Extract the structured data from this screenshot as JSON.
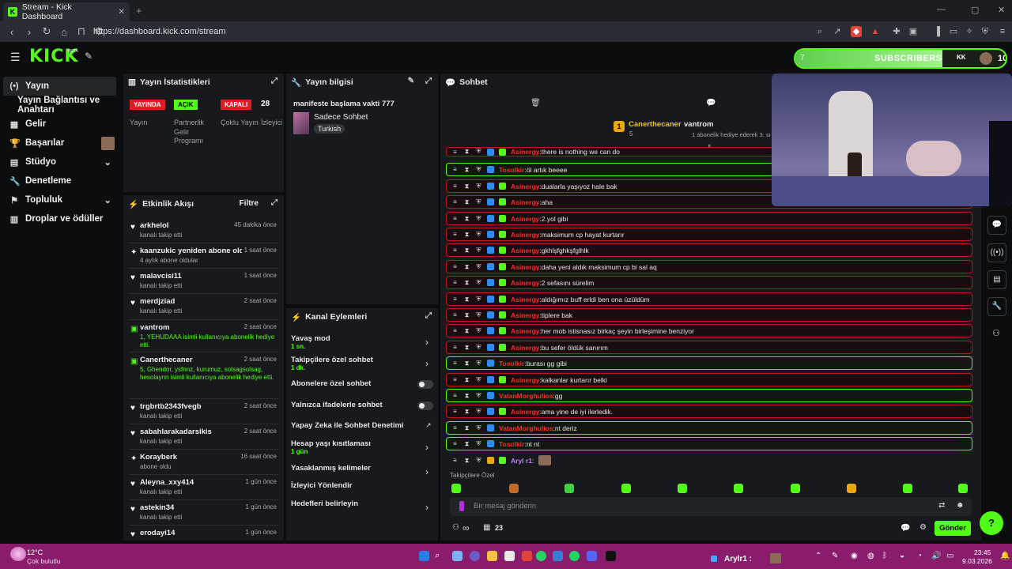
{
  "browser": {
    "tab_title": "Stream - Kick Dashboard",
    "tab_close": "✕",
    "new_tab": "+",
    "url": "https://dashboard.kick.com/stream",
    "window_controls": [
      "—",
      "▢",
      "✕"
    ]
  },
  "header": {
    "logo": "KICK",
    "logo_beta": "BETA",
    "subs_current": "7",
    "subs_label": "SUBSCRIBERS",
    "subs_count": "10",
    "subs_progress": 0.7
  },
  "sidebar": {
    "items": [
      {
        "label": "Yayın",
        "icon": "(•)"
      },
      {
        "label": "Yayın Bağlantısı ve Anahtarı",
        "icon": ""
      },
      {
        "label": "Gelir",
        "icon": "▦"
      },
      {
        "label": "Başarılar",
        "icon": "🏆"
      },
      {
        "label": "Stüdyo",
        "icon": "▤"
      },
      {
        "label": "Denetleme",
        "icon": "🔧"
      },
      {
        "label": "Topluluk",
        "icon": "⚑"
      },
      {
        "label": "Droplar ve ödüller",
        "icon": "▥"
      }
    ]
  },
  "stats": {
    "title": "Yayın İstatistikleri",
    "items": [
      {
        "badge": "YAYINDA",
        "label": "Yayın",
        "color": "#e11b22"
      },
      {
        "badge": "AÇIK",
        "label": "Partnerlik Gelir Programı",
        "color": "#53fc18"
      },
      {
        "badge": "KAPALI",
        "label": "Çoklu Yayın",
        "color": "#e11b22"
      },
      {
        "badge": "28",
        "label": "İzleyici",
        "color": ""
      }
    ]
  },
  "info": {
    "title": "Yayın bilgisi",
    "stream_title": "manifeste başlama vakti 777",
    "category": "Sadece Sohbet",
    "tag": "Turkish"
  },
  "feed": {
    "title": "Etkinlik Akışı",
    "filter": "Filtre",
    "items": [
      {
        "name": "arkhelol",
        "sub": "kanalı takip etti",
        "time": "45 dakika önce",
        "icon": "♥"
      },
      {
        "name": "kaanzukic yeniden abone oldu!",
        "sub": "4 aylık abone oldular",
        "time": "1 saat önce",
        "icon": "✦"
      },
      {
        "name": "malavcisi11",
        "sub": "kanalı takip etti",
        "time": "1 saat önce",
        "icon": "♥"
      },
      {
        "name": "merdjziad",
        "sub": "kanalı takip etti",
        "time": "2 saat önce",
        "icon": "♥"
      },
      {
        "name": "vantrom",
        "sub": "1, YEHUDAAA isimli kullanıcıya abonelik hediye etti.",
        "time": "2 saat önce",
        "icon": "▣"
      },
      {
        "name": "Canerthecaner",
        "sub": "5, Ghendor, ysfnnz, kurumuz, solsagsolsag, hesolaynn isimli kullanıcıya abonelik hediye etti.",
        "time": "2 saat önce",
        "icon": "▣"
      },
      {
        "name": "trgbrtb2343fvegb",
        "sub": "kanalı takip etti",
        "time": "2 saat önce",
        "icon": "♥"
      },
      {
        "name": "sabahlarakadarsikis",
        "sub": "kanalı takip etti",
        "time": "2 saat önce",
        "icon": "♥"
      },
      {
        "name": "Korayberk",
        "sub": "abone oldu",
        "time": "16 saat önce",
        "icon": "✦"
      },
      {
        "name": "Aleyna_xxy414",
        "sub": "kanalı takip etti",
        "time": "1 gün önce",
        "icon": "♥"
      },
      {
        "name": "astekin34",
        "sub": "kanalı takip etti",
        "time": "1 gün önce",
        "icon": "♥"
      },
      {
        "name": "erodayi14",
        "sub": "",
        "time": "1 gün önce",
        "icon": "♥"
      }
    ]
  },
  "actions": {
    "title": "Kanal Eylemleri",
    "items": [
      {
        "label": "Yavaş mod",
        "sub": "1 sn.",
        "control": "chevron"
      },
      {
        "label": "Takipçilere özel sohbet",
        "sub": "1 dk.",
        "control": "chevron"
      },
      {
        "label": "Abonelere özel sohbet",
        "sub": "",
        "control": "toggle"
      },
      {
        "label": "Yalnızca ifadelerle sohbet",
        "sub": "",
        "control": "toggle"
      },
      {
        "label": "Yapay Zeka ile Sohbet Denetimi",
        "sub": "",
        "control": "link"
      },
      {
        "label": "Hesap yaşı kısıtlaması",
        "sub": "1 gün",
        "control": "chevron"
      },
      {
        "label": "Yasaklanmış kelimeler",
        "sub": "",
        "control": "chevron"
      },
      {
        "label": "İzleyici Yönlendir",
        "sub": "",
        "control": "none"
      },
      {
        "label": "Hedefleri belirleyin",
        "sub": "",
        "control": "chevron"
      }
    ]
  },
  "chat": {
    "title": "Sohbet",
    "pinned_gifter": "Canerthecaner",
    "pinned_count": "5",
    "pinned_user": "vantrom",
    "pinned_text": "1 abonelik hediye ederek 3. sı",
    "messages": [
      {
        "user": "Asinergy",
        "text": "there is nothing we can do",
        "style": "red",
        "ucolor": "red"
      },
      {
        "user": "Tosolkir",
        "text": "öl artık beeee",
        "style": "green",
        "ucolor": "red"
      },
      {
        "user": "Asinergy",
        "text": "dualarla yaşıyoz hale bak",
        "style": "red",
        "ucolor": "red"
      },
      {
        "user": "Asinergy",
        "text": "aha",
        "style": "red",
        "ucolor": "red"
      },
      {
        "user": "Asinergy",
        "text": "2.yol gibi",
        "style": "red",
        "ucolor": "red"
      },
      {
        "user": "Asinergy",
        "text": "maksimum cp hayat kurtarır",
        "style": "red",
        "ucolor": "red"
      },
      {
        "user": "Asinergy",
        "text": "gkhlşfghkşfglhlk",
        "style": "red",
        "ucolor": "red"
      },
      {
        "user": "Asinergy",
        "text": "daha yeni aldık maksimum cp bi sal aq",
        "style": "red",
        "ucolor": "red"
      },
      {
        "user": "Asinergy",
        "text": "2 sefasını sürelim",
        "style": "red",
        "ucolor": "red"
      },
      {
        "user": "Asinergy",
        "text": "aldığımız buff erldi ben ona üzüldüm",
        "style": "red",
        "ucolor": "red"
      },
      {
        "user": "Asinergy",
        "text": "tiplere bak",
        "style": "red",
        "ucolor": "red"
      },
      {
        "user": "Asinergy",
        "text": "her mob istisnasız birkaç şeyin birleşimine benziyor",
        "style": "red",
        "ucolor": "red"
      },
      {
        "user": "Asinergy",
        "text": "bu sefer öldük sanırım",
        "style": "red",
        "ucolor": "red"
      },
      {
        "user": "Tosolkir",
        "text": "burası gg gibi",
        "style": "green",
        "ucolor": "red"
      },
      {
        "user": "Asinergy",
        "text": "kalkanlar kurtarır belki",
        "style": "red",
        "ucolor": "red"
      },
      {
        "user": "VatanMorghulios",
        "text": "gg",
        "style": "green",
        "ucolor": "red"
      },
      {
        "user": "Asinergy",
        "text": "ama yine de iyi ilerledik.",
        "style": "red",
        "ucolor": "red"
      },
      {
        "user": "VatanMorghulios",
        "text": "nt deriz",
        "style": "green",
        "ucolor": "red"
      },
      {
        "user": "Tosolkir",
        "text": "nt nt",
        "style": "green",
        "ucolor": "red"
      },
      {
        "user": "Aryl r1",
        "text": "",
        "style": "plain",
        "ucolor": "purple"
      }
    ],
    "followers_only": "Takipçilere Özel",
    "input_placeholder": "Bir mesaj gönderin",
    "viewers_icon_text": "∞",
    "count": "23",
    "send": "Gönder"
  },
  "taskbar": {
    "weather_temp": "12°C",
    "weather_desc": "Çok bulutlu",
    "user": "Arylr1 :",
    "time": "23:45",
    "date": "9.03.2026"
  }
}
